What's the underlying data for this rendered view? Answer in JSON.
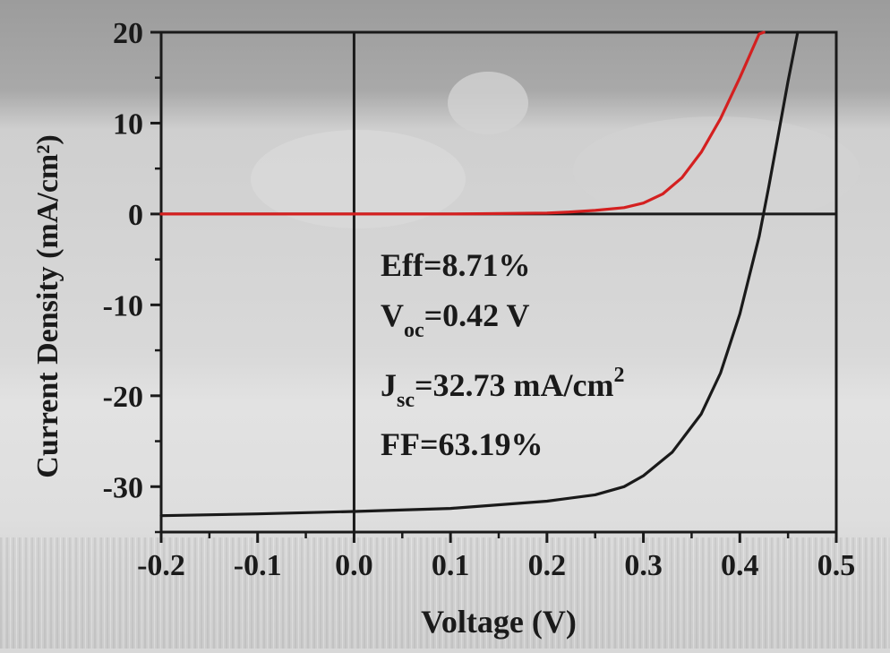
{
  "chart_data": {
    "type": "line",
    "xlabel": "Voltage (V)",
    "ylabel": "Current Density (mA/cm²)",
    "xlim": [
      -0.2,
      0.5
    ],
    "ylim": [
      -35,
      20
    ],
    "x_ticks": [
      "-0.2",
      "-0.1",
      "0.0",
      "0.1",
      "0.2",
      "0.3",
      "0.4",
      "0.5"
    ],
    "y_ticks": [
      "20",
      "10",
      "0",
      "-10",
      "-20",
      "-30"
    ],
    "series": [
      {
        "color": "#d42020",
        "x": [
          -0.2,
          -0.1,
          0.0,
          0.1,
          0.2,
          0.22,
          0.25,
          0.28,
          0.3,
          0.32,
          0.34,
          0.36,
          0.38,
          0.4,
          0.42,
          0.425
        ],
        "y": [
          0.0,
          0.0,
          0.0,
          0.0,
          0.1,
          0.2,
          0.4,
          0.7,
          1.2,
          2.2,
          4.0,
          6.8,
          10.5,
          15.0,
          19.8,
          20.0
        ]
      },
      {
        "color": "#1a1a1a",
        "x": [
          -0.2,
          -0.1,
          0.0,
          0.1,
          0.2,
          0.25,
          0.28,
          0.3,
          0.33,
          0.36,
          0.38,
          0.4,
          0.42,
          0.43,
          0.44,
          0.45,
          0.46
        ],
        "y": [
          -33.2,
          -33.0,
          -32.73,
          -32.4,
          -31.6,
          -30.9,
          -30.0,
          -28.8,
          -26.2,
          -22.0,
          -17.5,
          -11.0,
          -2.5,
          3.0,
          8.8,
          14.6,
          20.0
        ]
      }
    ],
    "annotations": {
      "eff": "Eff=8.71%",
      "voc_prefix": "V",
      "voc_sub": "oc",
      "voc_value": "=0.42 V",
      "jsc_prefix": "J",
      "jsc_sub": "sc",
      "jsc_value": "=32.73 mA/cm",
      "jsc_sup": "2",
      "ff": "FF=63.19%"
    }
  }
}
